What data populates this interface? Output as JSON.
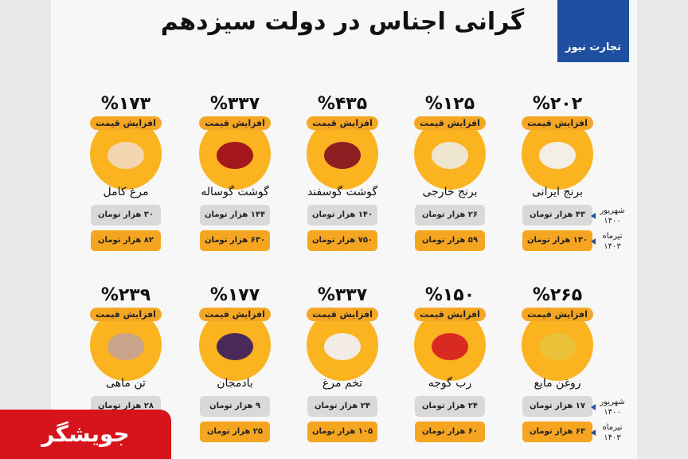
{
  "header": {
    "title": "گرانی اجناس در دولت سیزدهم",
    "logo": "تجارت نیوز"
  },
  "row_labels": [
    {
      "month": "شهریور",
      "year": "۱۴۰۰"
    },
    {
      "month": "تیرماه",
      "year": "۱۴۰۳"
    }
  ],
  "items": [
    {
      "percent": "%۲۰۲",
      "badge": "افزایش قیمت",
      "name": "برنج ایرانی",
      "price_old": "۴۳ هزار تومان",
      "price_new": "۱۳۰ هزار تومان"
    },
    {
      "percent": "%۱۲۵",
      "badge": "افزایش قیمت",
      "name": "برنج خارجی",
      "price_old": "۲۶ هزار تومان",
      "price_new": "۵۹ هزار تومان"
    },
    {
      "percent": "%۴۳۵",
      "badge": "افزایش قیمت",
      "name": "گوشت گوسفند",
      "price_old": "۱۴۰ هزار تومان",
      "price_new": "۷۵۰ هزار تومان"
    },
    {
      "percent": "%۳۳۷",
      "badge": "افزایش قیمت",
      "name": "گوشت گوساله",
      "price_old": "۱۴۴ هزار تومان",
      "price_new": "۶۳۰ هزار تومان"
    },
    {
      "percent": "%۱۷۳",
      "badge": "افزایش قیمت",
      "name": "مرغ کامل",
      "price_old": "۳۰ هزار تومان",
      "price_new": "۸۲ هزار تومان"
    },
    {
      "percent": "%۲۶۵",
      "badge": "افزایش قیمت",
      "name": "روغن مایع",
      "price_old": "۱۷ هزار تومان",
      "price_new": "۶۳ هزار تومان"
    },
    {
      "percent": "%۱۵۰",
      "badge": "افزایش قیمت",
      "name": "رب گوجه",
      "price_old": "۲۴ هزار تومان",
      "price_new": "۶۰ هزار تومان"
    },
    {
      "percent": "%۳۳۷",
      "badge": "افزایش قیمت",
      "name": "تخم مرغ",
      "price_old": "۲۴ هزار تومان",
      "price_new": "۱۰۵ هزار تومان"
    },
    {
      "percent": "%۱۷۷",
      "badge": "افزایش قیمت",
      "name": "بادمجان",
      "price_old": "۹ هزار تومان",
      "price_new": "۲۵ هزار تومان"
    },
    {
      "percent": "%۲۳۹",
      "badge": "افزایش قیمت",
      "name": "تن ماهی",
      "price_old": "۲۸ هزار تومان"
    }
  ],
  "watermark": "جویشگر"
}
